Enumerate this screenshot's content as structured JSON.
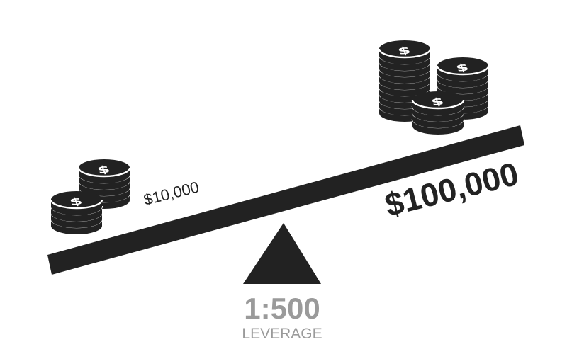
{
  "labels": {
    "small_amount": "$10,000",
    "large_amount": "$100,000",
    "ratio": "1:500",
    "ratio_caption": "LEVERAGE"
  },
  "coin_symbol": "$",
  "icons": {
    "coin_stack": "coin-stack-icon",
    "fulcrum": "triangle-fulcrum"
  },
  "colors": {
    "ink": "#222222",
    "muted": "#9a9a9a",
    "background": "#ffffff"
  }
}
